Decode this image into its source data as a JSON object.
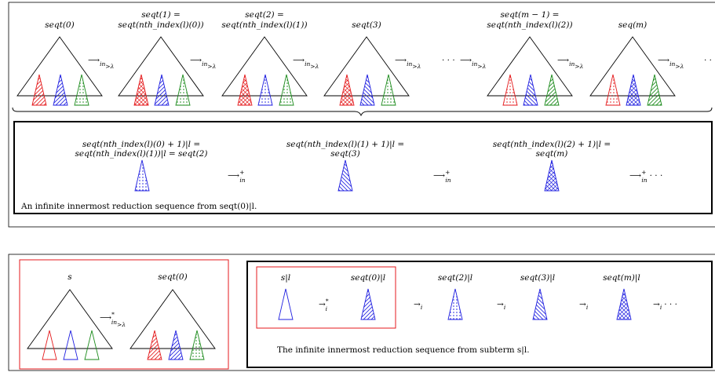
{
  "colors": {
    "red": "#e41a1c",
    "blue": "#1f1fe0",
    "green": "#1a8a1a",
    "frame": "#000000",
    "highlight": "#e41a1c"
  },
  "top": {
    "labels": [
      {
        "l1": "seqt(0)",
        "l2": ""
      },
      {
        "l1": "seqt(1) =",
        "l2": "seqt(nth_index(l)(0))"
      },
      {
        "l1": "seqt(2) =",
        "l2": "seqt(nth_index(l)(1))"
      },
      {
        "l1": "seqt(3)",
        "l2": ""
      },
      {
        "l1": "seqt(m − 1) =",
        "l2": "seqt(nth_index(l)(2))"
      },
      {
        "l1": "seq(m)",
        "l2": ""
      }
    ],
    "arrow_main": "⟶",
    "arrow_sub": "in",
    "arrow_subsub": ">λ",
    "dots": "· · ·",
    "trailing_dots": "· ·"
  },
  "inner": {
    "labels": [
      {
        "l1": "seqt(nth_index(l)(0) + 1)|l =",
        "l2": "seqt(nth_index(l)(1))|l = seqt(2)"
      },
      {
        "l1": "seqt(nth_index(l)(1) + 1)|l =",
        "l2": "seqt(3)"
      },
      {
        "l1": "seqt(nth_index(l)(2) + 1)|l =",
        "l2": "seqt(m)"
      }
    ],
    "arrow": "⟶",
    "arrow_sup": "+",
    "arrow_sub": "in",
    "trailing": "· · ·",
    "caption": "An infinite innermost reduction sequence from seqt(0)|l."
  },
  "bottom": {
    "left": {
      "label_s": "s",
      "label_seqt0": "seqt(0)",
      "arrow": "⟶",
      "arrow_sup": "*",
      "arrow_sub": "in",
      "arrow_subsub": ">λ"
    },
    "right": {
      "labels": [
        "s|l",
        "seqt(0)|l",
        "seqt(2)|l",
        "seqt(3)|l",
        "seqt(m)|l"
      ],
      "arrow_star": "→",
      "arrow_star_sup": "*",
      "arrow_i": "→",
      "arrow_sub": "i",
      "trailing": "· · ·",
      "caption": "The infinite innermost reduction sequence from subterm s|l."
    }
  }
}
